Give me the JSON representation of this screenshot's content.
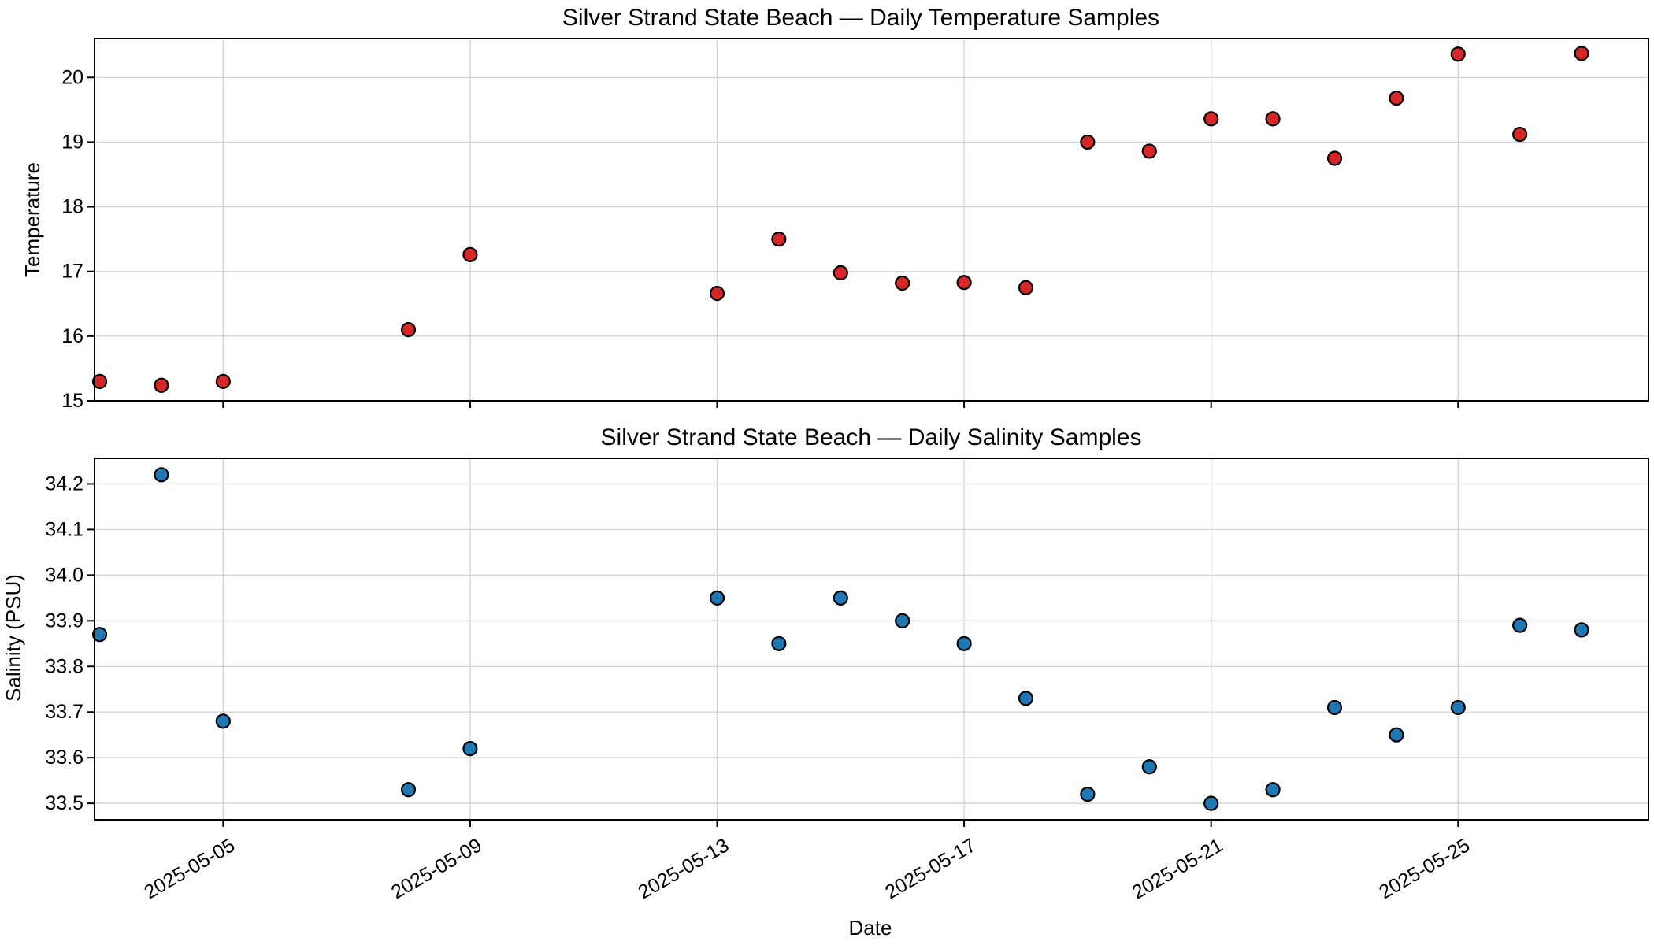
{
  "chart_data": [
    {
      "type": "scatter",
      "title": "Silver Strand State Beach — Daily Temperature Samples",
      "xlabel": "",
      "ylabel": "Temperature",
      "marker_color": "#d62728",
      "xlim": [
        "2025-05-02T22:00",
        "2025-05-28T02:00"
      ],
      "ylim": [
        15,
        20.6
      ],
      "yticks": [
        15,
        16,
        17,
        18,
        19,
        20
      ],
      "ytick_labels": [
        "15",
        "16",
        "17",
        "18",
        "19",
        "20"
      ],
      "xticks": [
        "2025-05-05",
        "2025-05-09",
        "2025-05-13",
        "2025-05-17",
        "2025-05-21",
        "2025-05-25"
      ],
      "xtick_labels_shown": false,
      "grid": true,
      "points": [
        {
          "x": "2025-05-03",
          "y": 15.3
        },
        {
          "x": "2025-05-04",
          "y": 15.24
        },
        {
          "x": "2025-05-05",
          "y": 15.3
        },
        {
          "x": "2025-05-08",
          "y": 16.1
        },
        {
          "x": "2025-05-09",
          "y": 17.26
        },
        {
          "x": "2025-05-13",
          "y": 16.66
        },
        {
          "x": "2025-05-14",
          "y": 17.5
        },
        {
          "x": "2025-05-15",
          "y": 16.98
        },
        {
          "x": "2025-05-16",
          "y": 16.82
        },
        {
          "x": "2025-05-17",
          "y": 16.83
        },
        {
          "x": "2025-05-18",
          "y": 16.75
        },
        {
          "x": "2025-05-19",
          "y": 19.0
        },
        {
          "x": "2025-05-20",
          "y": 18.86
        },
        {
          "x": "2025-05-21",
          "y": 19.36
        },
        {
          "x": "2025-05-22",
          "y": 19.36
        },
        {
          "x": "2025-05-23",
          "y": 18.75
        },
        {
          "x": "2025-05-24",
          "y": 19.68
        },
        {
          "x": "2025-05-25",
          "y": 20.36
        },
        {
          "x": "2025-05-26",
          "y": 19.12
        },
        {
          "x": "2025-05-27",
          "y": 20.37
        }
      ]
    },
    {
      "type": "scatter",
      "title": "Silver Strand State Beach — Daily Salinity Samples",
      "xlabel": "Date",
      "ylabel": "Salinity (PSU)",
      "marker_color": "#1f77b4",
      "xlim": [
        "2025-05-02T22:00",
        "2025-05-28T02:00"
      ],
      "ylim": [
        33.464,
        34.256
      ],
      "yticks": [
        33.5,
        33.6,
        33.7,
        33.8,
        33.9,
        34.0,
        34.1,
        34.2
      ],
      "ytick_labels": [
        "33.5",
        "33.6",
        "33.7",
        "33.8",
        "33.9",
        "34.0",
        "34.1",
        "34.2"
      ],
      "xticks": [
        "2025-05-05",
        "2025-05-09",
        "2025-05-13",
        "2025-05-17",
        "2025-05-21",
        "2025-05-25"
      ],
      "xtick_labels": [
        "2025-05-05",
        "2025-05-09",
        "2025-05-13",
        "2025-05-17",
        "2025-05-21",
        "2025-05-25"
      ],
      "xtick_labels_shown": true,
      "grid": true,
      "points": [
        {
          "x": "2025-05-03",
          "y": 33.87
        },
        {
          "x": "2025-05-04",
          "y": 34.22
        },
        {
          "x": "2025-05-05",
          "y": 33.68
        },
        {
          "x": "2025-05-08",
          "y": 33.53
        },
        {
          "x": "2025-05-09",
          "y": 33.62
        },
        {
          "x": "2025-05-13",
          "y": 33.95
        },
        {
          "x": "2025-05-14",
          "y": 33.85
        },
        {
          "x": "2025-05-15",
          "y": 33.95
        },
        {
          "x": "2025-05-16",
          "y": 33.9
        },
        {
          "x": "2025-05-17",
          "y": 33.85
        },
        {
          "x": "2025-05-18",
          "y": 33.73
        },
        {
          "x": "2025-05-19",
          "y": 33.52
        },
        {
          "x": "2025-05-20",
          "y": 33.58
        },
        {
          "x": "2025-05-21",
          "y": 33.5
        },
        {
          "x": "2025-05-22",
          "y": 33.53
        },
        {
          "x": "2025-05-23",
          "y": 33.71
        },
        {
          "x": "2025-05-24",
          "y": 33.65
        },
        {
          "x": "2025-05-25",
          "y": 33.71
        },
        {
          "x": "2025-05-26",
          "y": 33.89
        },
        {
          "x": "2025-05-27",
          "y": 33.88
        }
      ]
    }
  ]
}
